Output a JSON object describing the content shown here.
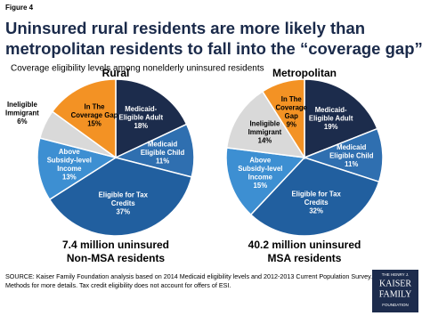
{
  "header": {
    "figure": "Figure 4",
    "title": [
      "Uninsured rural residents are more likely than",
      "metropolitan residents to fall into the “coverage gap”"
    ],
    "subtitle": "Coverage eligibility levels among nonelderly uninsured residents"
  },
  "chart_data": [
    {
      "type": "pie",
      "title": "Rural",
      "categories": [
        [
          "Medicaid-",
          "Eligible Adult"
        ],
        [
          "Medicaid",
          "Eligible Child"
        ],
        [
          "Eligible for Tax",
          "Credits"
        ],
        [
          "Above",
          "Subsidy-level",
          "Income"
        ],
        [
          "Ineligible",
          "Immigrant"
        ],
        [
          "In The",
          "Coverage Gap"
        ]
      ],
      "values": [
        18,
        11,
        37,
        13,
        6,
        15
      ],
      "value_labels": [
        "18%",
        "11%",
        "37%",
        "13%",
        "6%",
        "15%"
      ],
      "colors": [
        "#1c2c4c",
        "#2f6fb0",
        "#215f9f",
        "#3d8fd2",
        "#d9d9d9",
        "#f39224"
      ],
      "caption": [
        "7.4 million uninsured",
        "Non-MSA residents"
      ]
    },
    {
      "type": "pie",
      "title": "Metropolitan",
      "categories": [
        [
          "Medicaid-",
          "Eligible Adult"
        ],
        [
          "Medicaid",
          "Eligible Child"
        ],
        [
          "Eligible for Tax",
          "Credits"
        ],
        [
          "Above",
          "Subsidy-level",
          "Income"
        ],
        [
          "Ineligible",
          "Immigrant"
        ],
        [
          "In The",
          "Coverage",
          "Gap"
        ]
      ],
      "values": [
        19,
        11,
        32,
        15,
        14,
        9
      ],
      "value_labels": [
        "19%",
        "11%",
        "32%",
        "15%",
        "14%",
        "9%"
      ],
      "colors": [
        "#1c2c4c",
        "#2f6fb0",
        "#215f9f",
        "#3d8fd2",
        "#d9d9d9",
        "#f39224"
      ],
      "caption": [
        "40.2 million uninsured",
        "MSA residents"
      ]
    }
  ],
  "source": [
    "SOURCE: Kaiser Family Foundation analysis based on 2014 Medicaid eligibility levels and 2012-2013 Current Population Survey. See",
    "Methods for more details. Tax credit eligibility does not account for offers of ESI."
  ],
  "logo": [
    "THE HENRY J.",
    "KAISER",
    "FAMILY",
    "FOUNDATION"
  ]
}
